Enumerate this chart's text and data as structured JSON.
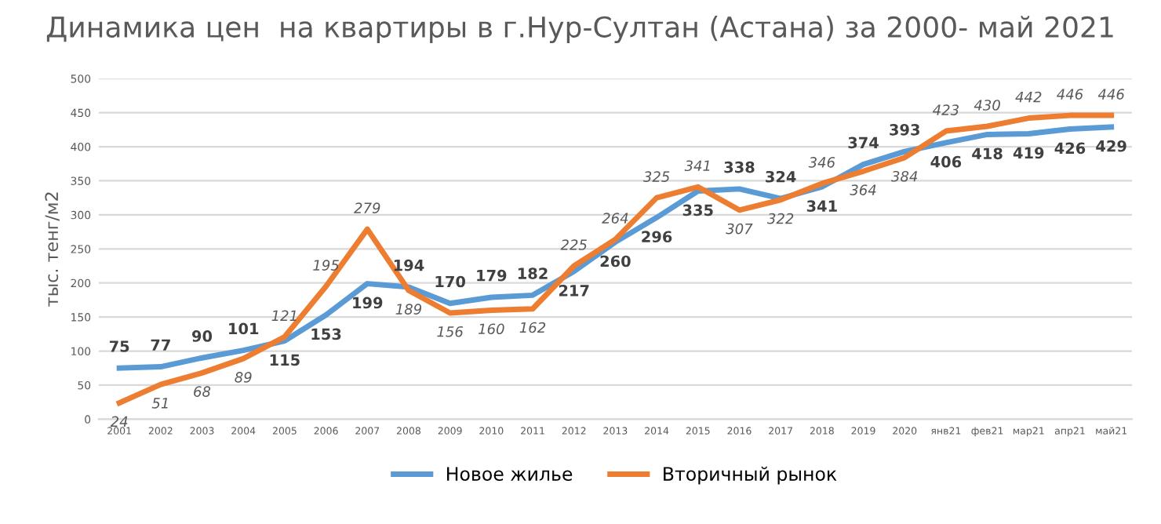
{
  "chart_data": {
    "type": "line",
    "title": "Динамика цен  на квартиры в г.Нур-Султан (Астана) за 2000- май 2021",
    "ylabel": "тыс. тенг/м2",
    "categories": [
      "2001",
      "2002",
      "2003",
      "2004",
      "2005",
      "2006",
      "2007",
      "2008",
      "2009",
      "2010",
      "2011",
      "2012",
      "2013",
      "2014",
      "2015",
      "2016",
      "2017",
      "2018",
      "2019",
      "2020",
      "янв21",
      "фев21",
      "мар21",
      "апр21",
      "май21"
    ],
    "series": [
      {
        "name": "Новое жилье",
        "color": "#5b9bd5",
        "values": [
          75,
          77,
          90,
          101,
          115,
          153,
          199,
          194,
          170,
          179,
          182,
          217,
          260,
          296,
          335,
          338,
          324,
          341,
          374,
          393,
          406,
          418,
          419,
          426,
          429
        ]
      },
      {
        "name": "Вторичный рынок",
        "color": "#ed7d31",
        "values": [
          24,
          51,
          68,
          89,
          121,
          195,
          279,
          189,
          156,
          160,
          162,
          225,
          264,
          325,
          341,
          307,
          322,
          346,
          364,
          384,
          423,
          430,
          442,
          446,
          446
        ]
      }
    ],
    "ylim": [
      0,
      500
    ],
    "yticks": [
      0,
      50,
      100,
      150,
      200,
      250,
      300,
      350,
      400,
      450,
      500
    ],
    "grid": "y",
    "legend": "bottom",
    "data_labels": true,
    "marker": "none",
    "line_style": "solid"
  }
}
